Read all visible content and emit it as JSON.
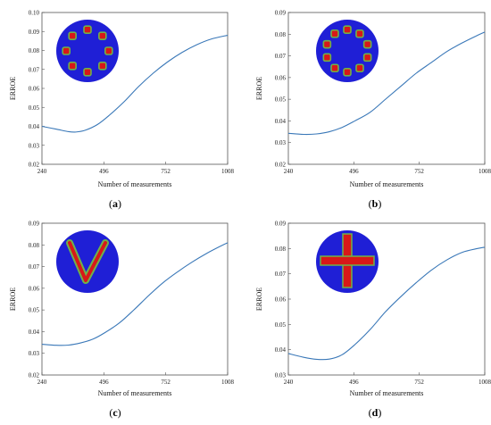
{
  "colors": {
    "line": "#3a78b8",
    "axis": "#555555",
    "disk": "#1f1fd6",
    "target_red": "#d81818",
    "target_green": "#6fb24a"
  },
  "chart_data": [
    {
      "type": "line",
      "panel_label": "(a)",
      "title": "",
      "xlabel": "Number of measurements",
      "ylabel": "ERROE",
      "xlim": [
        240,
        1008
      ],
      "ylim": [
        0.02,
        0.1
      ],
      "xticks": [
        "240",
        "496",
        "752",
        "1008"
      ],
      "yticks": [
        "0.02",
        "0.03",
        "0.04",
        "0.05",
        "0.06",
        "0.07",
        "0.08",
        "0.09",
        "0.10"
      ],
      "inset": "ring-of-eight-inclusions",
      "x": [
        240,
        300,
        350,
        380,
        420,
        470,
        520,
        580,
        640,
        700,
        760,
        820,
        880,
        940,
        1008
      ],
      "y": [
        0.04,
        0.0385,
        0.0372,
        0.037,
        0.038,
        0.041,
        0.046,
        0.053,
        0.061,
        0.068,
        0.074,
        0.079,
        0.083,
        0.086,
        0.088
      ]
    },
    {
      "type": "line",
      "panel_label": "(b)",
      "title": "",
      "xlabel": "Number of measurements",
      "ylabel": "ERROE",
      "xlim": [
        240,
        1008
      ],
      "ylim": [
        0.02,
        0.09
      ],
      "xticks": [
        "240",
        "496",
        "752",
        "1008"
      ],
      "yticks": [
        "0.02",
        "0.03",
        "0.04",
        "0.05",
        "0.06",
        "0.07",
        "0.08",
        "0.09"
      ],
      "inset": "ring-of-ten-inclusions",
      "x": [
        240,
        300,
        350,
        400,
        450,
        500,
        560,
        620,
        680,
        740,
        800,
        860,
        920,
        980,
        1008
      ],
      "y": [
        0.0343,
        0.0338,
        0.034,
        0.035,
        0.037,
        0.04,
        0.044,
        0.05,
        0.056,
        0.062,
        0.067,
        0.072,
        0.076,
        0.0795,
        0.081
      ]
    },
    {
      "type": "line",
      "panel_label": "(c)",
      "title": "",
      "xlabel": "Number of measurements",
      "ylabel": "ERROE",
      "xlim": [
        240,
        1008
      ],
      "ylim": [
        0.02,
        0.09
      ],
      "xticks": [
        "240",
        "496",
        "752",
        "1008"
      ],
      "yticks": [
        "0.02",
        "0.03",
        "0.04",
        "0.05",
        "0.06",
        "0.07",
        "0.08",
        "0.09"
      ],
      "inset": "v-shaped-inclusion",
      "x": [
        240,
        300,
        350,
        400,
        450,
        500,
        560,
        620,
        680,
        740,
        800,
        860,
        920,
        980,
        1008
      ],
      "y": [
        0.0342,
        0.0337,
        0.0338,
        0.0348,
        0.0365,
        0.0395,
        0.044,
        0.05,
        0.0565,
        0.0625,
        0.0675,
        0.072,
        0.076,
        0.0795,
        0.081
      ]
    },
    {
      "type": "line",
      "panel_label": "(d)",
      "title": "",
      "xlabel": "Number of measurements",
      "ylabel": "ERROE",
      "xlim": [
        240,
        1008
      ],
      "ylim": [
        0.03,
        0.09
      ],
      "xticks": [
        "240",
        "496",
        "752",
        "1008"
      ],
      "yticks": [
        "0.03",
        "0.04",
        "0.05",
        "0.06",
        "0.07",
        "0.08",
        "0.09"
      ],
      "inset": "cross-shaped-inclusion",
      "x": [
        240,
        300,
        350,
        400,
        450,
        500,
        560,
        620,
        680,
        740,
        800,
        860,
        920,
        980,
        1008
      ],
      "y": [
        0.0385,
        0.037,
        0.0362,
        0.0363,
        0.038,
        0.042,
        0.048,
        0.055,
        0.061,
        0.0665,
        0.0715,
        0.0755,
        0.0785,
        0.08,
        0.0805
      ]
    }
  ]
}
